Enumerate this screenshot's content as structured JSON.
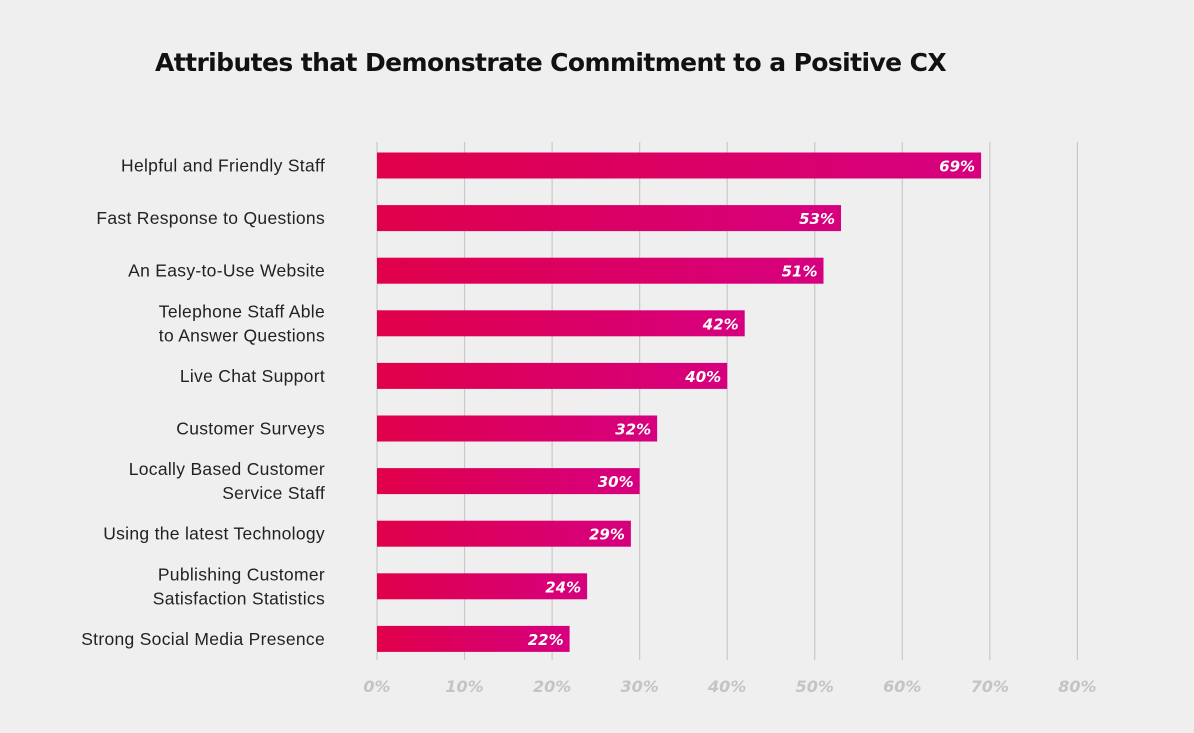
{
  "chart_data": {
    "type": "bar",
    "orientation": "horizontal",
    "title": "Attributes that Demonstrate Commitment to a Positive CX",
    "categories": [
      [
        "Helpful and Friendly Staff"
      ],
      [
        "Fast Response to Questions"
      ],
      [
        "An Easy-to-Use Website"
      ],
      [
        "Telephone Staff Able",
        "to Answer Questions"
      ],
      [
        "Live Chat Support"
      ],
      [
        "Customer Surveys"
      ],
      [
        "Locally Based Customer",
        "Service Staff"
      ],
      [
        "Using the latest Technology"
      ],
      [
        "Publishing Customer",
        "Satisfaction Statistics"
      ],
      [
        "Strong Social Media Presence"
      ]
    ],
    "values": [
      69,
      53,
      51,
      42,
      40,
      32,
      30,
      29,
      24,
      22
    ],
    "value_labels": [
      "69%",
      "53%",
      "51%",
      "42%",
      "40%",
      "32%",
      "30%",
      "29%",
      "24%",
      "22%"
    ],
    "xlim": [
      0,
      80
    ],
    "xticks": [
      0,
      10,
      20,
      30,
      40,
      50,
      60,
      70,
      80
    ],
    "xtick_labels": [
      "0%",
      "10%",
      "20%",
      "30%",
      "40%",
      "50%",
      "60%",
      "70%",
      "80%"
    ],
    "xlabel": "",
    "ylabel": "",
    "grid": true,
    "legend": "none",
    "colors": {
      "bar_start": "#e0004a",
      "bar_end": "#d6007f",
      "grid": "#c8c8c8",
      "tick_text": "#c4c4c4",
      "value_text": "#ffffff",
      "background": "#efefef"
    }
  }
}
